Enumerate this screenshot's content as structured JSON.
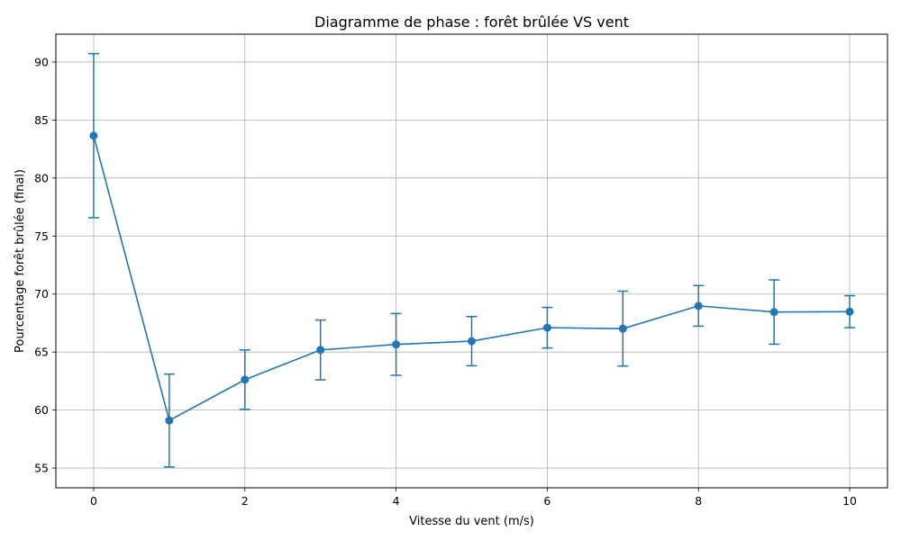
{
  "chart_data": {
    "type": "line",
    "title": "Diagramme de phase : forêt brûlée VS vent",
    "xlabel": "Vitesse du vent (m/s)",
    "ylabel": "Pourcentage forêt brûlée (final)",
    "xlim": [
      -0.5,
      10.5
    ],
    "ylim": [
      53.3,
      92.4
    ],
    "xticks": [
      0,
      2,
      4,
      6,
      8,
      10
    ],
    "yticks": [
      55,
      60,
      65,
      70,
      75,
      80,
      85,
      90
    ],
    "grid": true,
    "color": "#1f77b4",
    "series": [
      {
        "x": [
          0,
          1,
          2,
          3,
          4,
          5,
          6,
          7,
          8,
          9,
          10
        ],
        "y": [
          83.65,
          59.1,
          62.62,
          65.18,
          65.66,
          65.94,
          67.1,
          67.02,
          68.98,
          68.45,
          68.48
        ],
        "yerr": [
          7.07,
          4.0,
          2.56,
          2.58,
          2.66,
          2.12,
          1.75,
          3.23,
          1.75,
          2.77,
          1.38
        ]
      }
    ]
  }
}
